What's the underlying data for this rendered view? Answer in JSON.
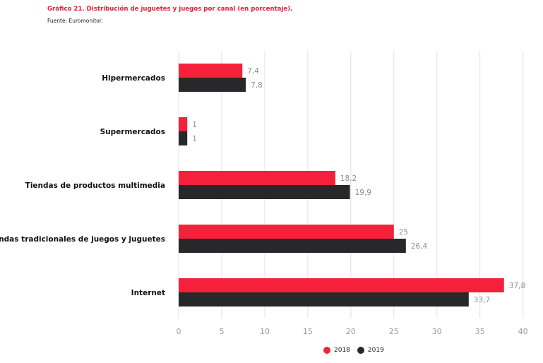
{
  "header": {
    "title": "Gráfico 21. Distribución de juguetes y juegos por canal (en porcentaje).",
    "source": "Fuente: Euromonitor."
  },
  "colors": {
    "accent": "#e8203a",
    "series_2018": "#f5203a",
    "series_2019": "#26282a",
    "grid": "#e2e2e2",
    "tick_text": "#9a9a9a",
    "value_text": "#8f8f8f"
  },
  "chart_data": {
    "type": "bar",
    "orientation": "horizontal",
    "title": "Gráfico 21. Distribución de juguetes y juegos por canal (en porcentaje).",
    "xlabel": "",
    "ylabel": "",
    "xlim": [
      0,
      40
    ],
    "x_ticks": [
      0,
      5,
      10,
      15,
      20,
      25,
      30,
      35,
      40
    ],
    "grid": true,
    "legend_position": "bottom",
    "categories": [
      "Hipermercados",
      "Supermercados",
      "Tiendas de productos multimedia",
      "Tiendas tradicionales de juegos y juguetes",
      "Internet"
    ],
    "series": [
      {
        "name": "2018",
        "values": [
          7.4,
          1,
          18.2,
          25,
          37.8
        ],
        "labels": [
          "7,4",
          "1",
          "18,2",
          "25",
          "37,8"
        ]
      },
      {
        "name": "2019",
        "values": [
          7.8,
          1,
          19.9,
          26.4,
          33.7
        ],
        "labels": [
          "7,8",
          "1",
          "19,9",
          "26,4",
          "33,7"
        ]
      }
    ]
  }
}
